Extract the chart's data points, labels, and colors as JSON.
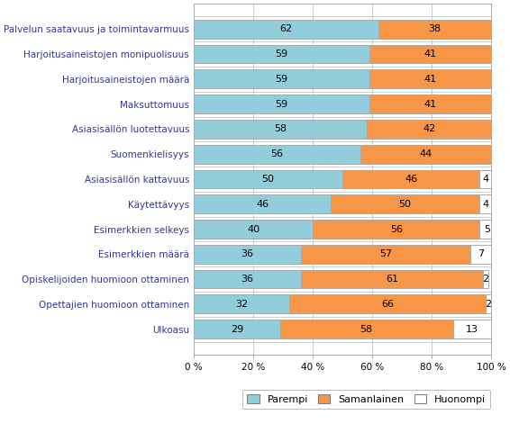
{
  "categories": [
    "Palvelun saatavuus ja toimintavarmuus",
    "Harjoitusaineistojen monipuolisuus",
    "Harjoitusaineistojen määrä",
    "Maksuttomuus",
    "Asiasisällön luotettavuus",
    "Suomenkielisyys",
    "Asiasisällön kattavuus",
    "Käytettävyys",
    "Esimerkkien selkeys",
    "Esimerkkien määrä",
    "Opiskelijoiden huomioon ottaminen",
    "Opettajien huomioon ottaminen",
    "Ulkoasu"
  ],
  "parempi": [
    62,
    59,
    59,
    59,
    58,
    56,
    50,
    46,
    40,
    36,
    36,
    32,
    29
  ],
  "samanlainen": [
    38,
    41,
    41,
    41,
    42,
    44,
    46,
    50,
    56,
    57,
    61,
    66,
    58
  ],
  "huonompi": [
    0,
    0,
    0,
    0,
    0,
    0,
    4,
    4,
    5,
    7,
    2,
    2,
    13
  ],
  "color_parempi": "#92CDDC",
  "color_samanlainen": "#F79646",
  "color_huonompi": "#FFFFFF",
  "bar_edge_color": "#AAAAAA",
  "legend_parempi": "Parempi",
  "legend_samanlainen": "Samanlainen",
  "legend_huonompi": "Huonompi",
  "xlim": [
    0,
    100
  ],
  "xtick_labels": [
    "0 %",
    "20 %",
    "40 %",
    "60 %",
    "80 %",
    "100 %"
  ],
  "xtick_values": [
    0,
    20,
    40,
    60,
    80,
    100
  ],
  "background_color": "#FFFFFF",
  "label_fontsize": 7.5,
  "bar_label_fontsize": 8.0,
  "legend_fontsize": 8.0,
  "category_fontsize": 7.5
}
